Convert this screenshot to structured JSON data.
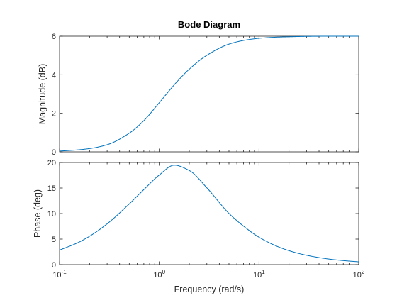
{
  "chart_data": [
    {
      "type": "line",
      "title": "Bode Diagram",
      "xlabel": "Frequency  (rad/s)",
      "ylabel": "Magnitude (dB)",
      "xscale": "log",
      "xlim": [
        0.1,
        100
      ],
      "ylim": [
        0,
        6
      ],
      "yticks": [
        0,
        2,
        4,
        6
      ],
      "ytick_labels": [
        "0",
        "2",
        "4",
        "6"
      ],
      "grid": false,
      "line_color": "#0072bd",
      "series": [
        {
          "x": [
            0.1,
            0.15,
            0.2,
            0.3,
            0.5,
            0.7,
            1,
            1.5,
            2,
            3,
            5,
            7,
            10,
            15,
            20,
            30,
            50,
            70,
            100
          ],
          "y": [
            0.04,
            0.1,
            0.17,
            0.37,
            0.97,
            1.62,
            2.55,
            3.63,
            4.29,
            5.01,
            5.59,
            5.78,
            5.89,
            5.95,
            5.97,
            5.99,
            6.0,
            6.0,
            6.0
          ]
        }
      ]
    },
    {
      "type": "line",
      "title": "",
      "xlabel": "Frequency  (rad/s)",
      "ylabel": "Phase (deg)",
      "xscale": "log",
      "xlim": [
        0.1,
        100
      ],
      "ylim": [
        0,
        20
      ],
      "yticks": [
        0,
        5,
        10,
        15,
        20
      ],
      "ytick_labels": [
        "0",
        "5",
        "10",
        "15",
        "20"
      ],
      "xticks": [
        0.1,
        1,
        10,
        100
      ],
      "xtick_labels": [
        {
          "base": "10",
          "exp": "-1"
        },
        {
          "base": "10",
          "exp": "0"
        },
        {
          "base": "10",
          "exp": "1"
        },
        {
          "base": "10",
          "exp": "2"
        }
      ],
      "grid": false,
      "line_color": "#0072bd",
      "series": [
        {
          "x": [
            0.1,
            0.15,
            0.2,
            0.3,
            0.5,
            0.7,
            1,
            1.414,
            2,
            3,
            5,
            7,
            10,
            15,
            20,
            30,
            50,
            70,
            100
          ],
          "y": [
            2.85,
            4.23,
            5.56,
            7.99,
            11.89,
            14.69,
            17.55,
            19.47,
            18.43,
            15.04,
            10.03,
            7.54,
            5.37,
            3.63,
            2.73,
            1.83,
            1.1,
            0.79,
            0.55
          ]
        }
      ]
    }
  ]
}
